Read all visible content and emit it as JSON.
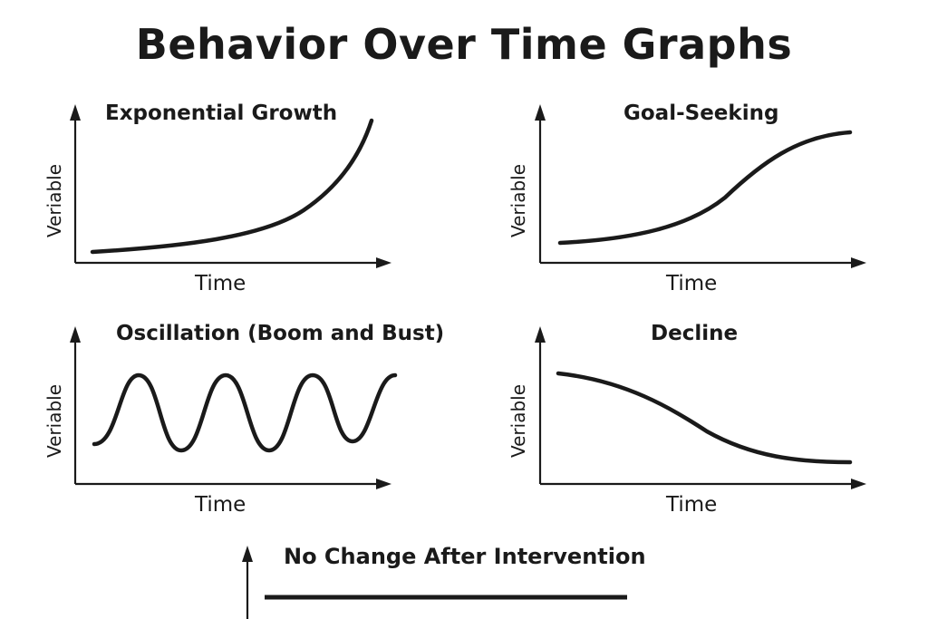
{
  "title": "Behavior Over Time Graphs",
  "panels": [
    {
      "title": "Exponential Growth",
      "xlabel": "Time",
      "ylabel": "Veriable",
      "pattern": "exponential-growth"
    },
    {
      "title": "Goal-Seeking",
      "xlabel": "Time",
      "ylabel": "Veriable",
      "pattern": "goal-seeking"
    },
    {
      "title": "Oscillation (Boom and Bust)",
      "xlabel": "Time",
      "ylabel": "Veriable",
      "pattern": "oscillation"
    },
    {
      "title": "Decline",
      "xlabel": "Time",
      "ylabel": "Veriable",
      "pattern": "decline"
    },
    {
      "title": "No Change After Intervention",
      "pattern": "flat"
    }
  ]
}
